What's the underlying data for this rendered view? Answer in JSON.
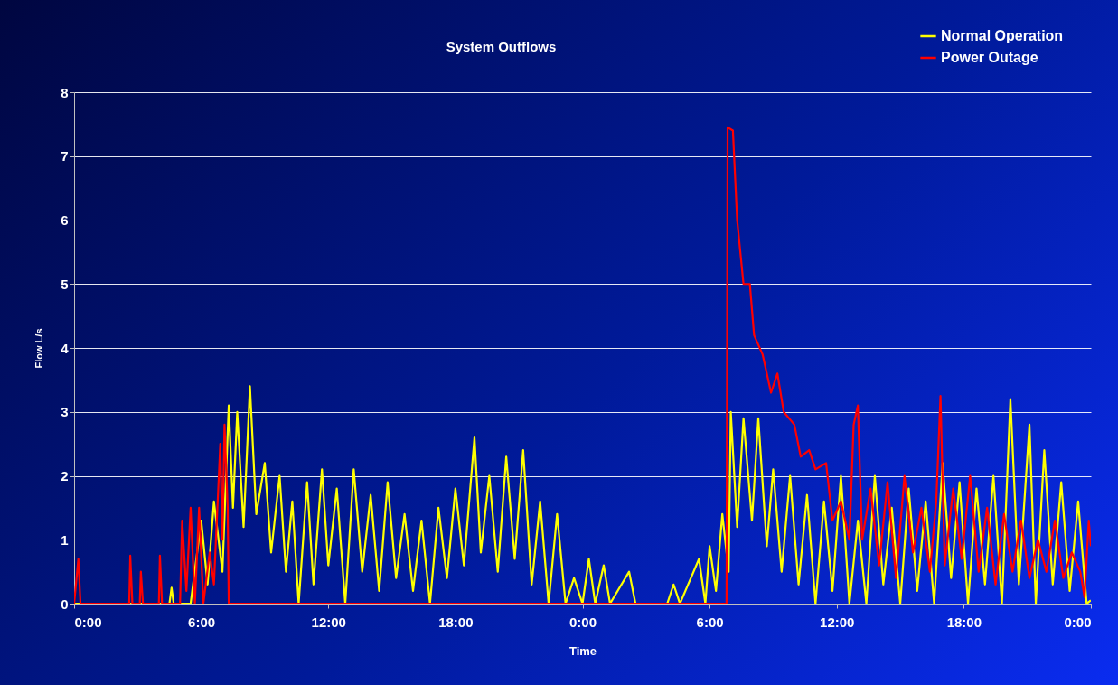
{
  "chart_data": {
    "type": "line",
    "title": "System Outflows",
    "xlabel": "Time",
    "ylabel": "Flow L/s",
    "xlim": [
      "--01-01T00:00",
      "--01-03T00:00"
    ],
    "xticks": [
      {
        "value": "--01-01T00:00",
        "label": "0:00"
      },
      {
        "value": "--01-01T06:00",
        "label": "6:00"
      },
      {
        "value": "--01-01T12:00",
        "label": "12:00"
      },
      {
        "value": "--01-01T18:00",
        "label": "18:00"
      },
      {
        "value": "--01-02T00:00",
        "label": "0:00"
      },
      {
        "value": "--01-02T06:00",
        "label": "6:00"
      },
      {
        "value": "--01-02T12:00",
        "label": "12:00"
      },
      {
        "value": "--01-02T18:00",
        "label": "18:00"
      },
      {
        "value": "--01-03T00:00",
        "label": "0:00"
      }
    ],
    "ylim": [
      0,
      8
    ],
    "yticks": [
      0,
      1,
      2,
      3,
      4,
      5,
      6,
      7,
      8
    ],
    "grid": "y",
    "legend": "top right",
    "marker": "none",
    "line_style": "solid",
    "series": [
      {
        "name": "Normal Operation",
        "color": "#ffff00",
        "x": [
          "--01-01T00:00",
          "--01-01T04:30",
          "--01-01T04:36",
          "--01-01T04:42",
          "--01-01T05:30",
          "--01-01T06:00",
          "--01-01T06:18",
          "--01-01T06:36",
          "--01-01T07:00",
          "--01-01T07:18",
          "--01-01T07:30",
          "--01-01T07:42",
          "--01-01T08:00",
          "--01-01T08:18",
          "--01-01T08:36",
          "--01-01T09:00",
          "--01-01T09:18",
          "--01-01T09:42",
          "--01-01T10:00",
          "--01-01T10:18",
          "--01-01T10:36",
          "--01-01T11:00",
          "--01-01T11:18",
          "--01-01T11:42",
          "--01-01T12:00",
          "--01-01T12:24",
          "--01-01T12:48",
          "--01-01T13:12",
          "--01-01T13:36",
          "--01-01T14:00",
          "--01-01T14:24",
          "--01-01T14:48",
          "--01-01T15:12",
          "--01-01T15:36",
          "--01-01T16:00",
          "--01-01T16:24",
          "--01-01T16:48",
          "--01-01T17:12",
          "--01-01T17:36",
          "--01-01T18:00",
          "--01-01T18:24",
          "--01-01T18:54",
          "--01-01T19:12",
          "--01-01T19:36",
          "--01-01T20:00",
          "--01-01T20:24",
          "--01-01T20:48",
          "--01-01T21:12",
          "--01-01T21:36",
          "--01-01T22:00",
          "--01-01T22:24",
          "--01-01T22:48",
          "--01-01T23:12",
          "--01-01T23:36",
          "--01-02T00:00",
          "--01-02T00:18",
          "--01-02T00:36",
          "--01-02T01:00",
          "--01-02T01:18",
          "--01-02T02:12",
          "--01-02T02:30",
          "--01-02T04:00",
          "--01-02T04:18",
          "--01-02T04:36",
          "--01-02T05:30",
          "--01-02T05:48",
          "--01-02T06:00",
          "--01-02T06:18",
          "--01-02T06:36",
          "--01-02T06:54",
          "--01-02T07:00",
          "--01-02T07:18",
          "--01-02T07:36",
          "--01-02T08:00",
          "--01-02T08:18",
          "--01-02T08:42",
          "--01-02T09:00",
          "--01-02T09:24",
          "--01-02T09:48",
          "--01-02T10:12",
          "--01-02T10:36",
          "--01-02T11:00",
          "--01-02T11:24",
          "--01-02T11:48",
          "--01-02T12:12",
          "--01-02T12:36",
          "--01-02T13:00",
          "--01-02T13:24",
          "--01-02T13:48",
          "--01-02T14:12",
          "--01-02T14:36",
          "--01-02T15:00",
          "--01-02T15:24",
          "--01-02T15:48",
          "--01-02T16:12",
          "--01-02T16:36",
          "--01-02T17:00",
          "--01-02T17:24",
          "--01-02T17:48",
          "--01-02T18:12",
          "--01-02T18:36",
          "--01-02T19:00",
          "--01-02T19:24",
          "--01-02T19:48",
          "--01-02T20:12",
          "--01-02T20:36",
          "--01-02T21:06",
          "--01-02T21:24",
          "--01-02T21:48",
          "--01-02T22:12",
          "--01-02T22:36",
          "--01-02T23:00",
          "--01-02T23:24",
          "--01-02T23:48",
          "--01-03T00:00"
        ],
        "values": [
          0,
          0,
          0.25,
          0,
          0,
          1.3,
          0.3,
          1.6,
          0.5,
          3.1,
          1.5,
          3.0,
          1.2,
          3.4,
          1.4,
          2.2,
          0.8,
          2.0,
          0.5,
          1.6,
          0,
          1.9,
          0.3,
          2.1,
          0.6,
          1.8,
          0,
          2.1,
          0.5,
          1.7,
          0.2,
          1.9,
          0.4,
          1.4,
          0.2,
          1.3,
          0,
          1.5,
          0.4,
          1.8,
          0.6,
          2.6,
          0.8,
          2.0,
          0.5,
          2.3,
          0.7,
          2.4,
          0.3,
          1.6,
          0,
          1.4,
          0,
          0.4,
          0,
          0.7,
          0,
          0.6,
          0,
          0.5,
          0,
          0,
          0.3,
          0,
          0.7,
          0,
          0.9,
          0.2,
          1.4,
          0.5,
          3.0,
          1.2,
          2.9,
          1.3,
          2.9,
          0.9,
          2.1,
          0.5,
          2.0,
          0.3,
          1.7,
          0,
          1.6,
          0.2,
          2.0,
          0,
          1.3,
          0,
          2.0,
          0.3,
          1.5,
          0,
          1.8,
          0.2,
          1.6,
          0,
          2.2,
          0.4,
          1.9,
          0,
          1.8,
          0.3,
          2.0,
          0,
          3.2,
          0.3,
          2.8,
          0,
          2.4,
          0.3,
          1.9,
          0.2,
          1.6,
          0,
          0.05
        ]
      },
      {
        "name": "Power Outage",
        "color": "#ff0000",
        "x": [
          "--01-01T00:00",
          "--01-01T00:12",
          "--01-01T00:18",
          "--01-01T02:36",
          "--01-01T02:39",
          "--01-01T02:45",
          "--01-01T03:06",
          "--01-01T03:09",
          "--01-01T03:15",
          "--01-01T04:00",
          "--01-01T04:03",
          "--01-01T04:09",
          "--01-01T05:00",
          "--01-01T05:06",
          "--01-01T05:18",
          "--01-01T05:30",
          "--01-01T05:42",
          "--01-01T05:54",
          "--01-01T06:06",
          "--01-01T06:24",
          "--01-01T06:36",
          "--01-01T06:54",
          "--01-01T07:00",
          "--01-01T07:06",
          "--01-01T07:15",
          "--01-01T07:18",
          "--01-02T06:48",
          "--01-02T06:51",
          "--01-02T07:06",
          "--01-02T07:18",
          "--01-02T07:36",
          "--01-02T07:54",
          "--01-02T08:06",
          "--01-02T08:30",
          "--01-02T08:54",
          "--01-02T09:12",
          "--01-02T09:30",
          "--01-02T10:00",
          "--01-02T10:18",
          "--01-02T10:42",
          "--01-02T11:00",
          "--01-02T11:30",
          "--01-02T11:48",
          "--01-02T12:12",
          "--01-02T12:36",
          "--01-02T12:48",
          "--01-02T13:00",
          "--01-02T13:12",
          "--01-02T13:36",
          "--01-02T14:00",
          "--01-02T14:24",
          "--01-02T14:48",
          "--01-02T15:12",
          "--01-02T15:36",
          "--01-02T16:00",
          "--01-02T16:24",
          "--01-02T16:42",
          "--01-02T16:54",
          "--01-02T17:06",
          "--01-02T17:30",
          "--01-02T17:54",
          "--01-02T18:18",
          "--01-02T18:42",
          "--01-02T19:06",
          "--01-02T19:30",
          "--01-02T19:54",
          "--01-02T20:18",
          "--01-02T20:42",
          "--01-02T21:06",
          "--01-02T21:30",
          "--01-02T21:54",
          "--01-02T22:18",
          "--01-02T22:42",
          "--01-02T23:06",
          "--01-02T23:30",
          "--01-02T23:42",
          "--01-02T23:54",
          "--01-03T00:00"
        ],
        "values": [
          0,
          0.7,
          0,
          0,
          0.75,
          0,
          0,
          0.5,
          0,
          0,
          0.75,
          0,
          0,
          1.3,
          0.2,
          1.5,
          0,
          1.5,
          0,
          0.8,
          0.3,
          2.5,
          1.0,
          2.8,
          1.5,
          0,
          0,
          7.45,
          7.4,
          6.0,
          5.0,
          5.0,
          4.2,
          3.9,
          3.3,
          3.6,
          3.0,
          2.8,
          2.3,
          2.4,
          2.1,
          2.2,
          1.3,
          1.6,
          1.0,
          2.8,
          3.1,
          1.0,
          1.8,
          0.6,
          1.9,
          0.4,
          2.0,
          0.8,
          1.5,
          0.5,
          1.6,
          3.25,
          0.6,
          1.8,
          0.7,
          2.0,
          0.5,
          1.5,
          0.3,
          1.4,
          0.5,
          1.3,
          0.4,
          1.0,
          0.5,
          1.3,
          0.4,
          0.8,
          0.5,
          0.1,
          1.3,
          0.9
        ]
      }
    ]
  }
}
